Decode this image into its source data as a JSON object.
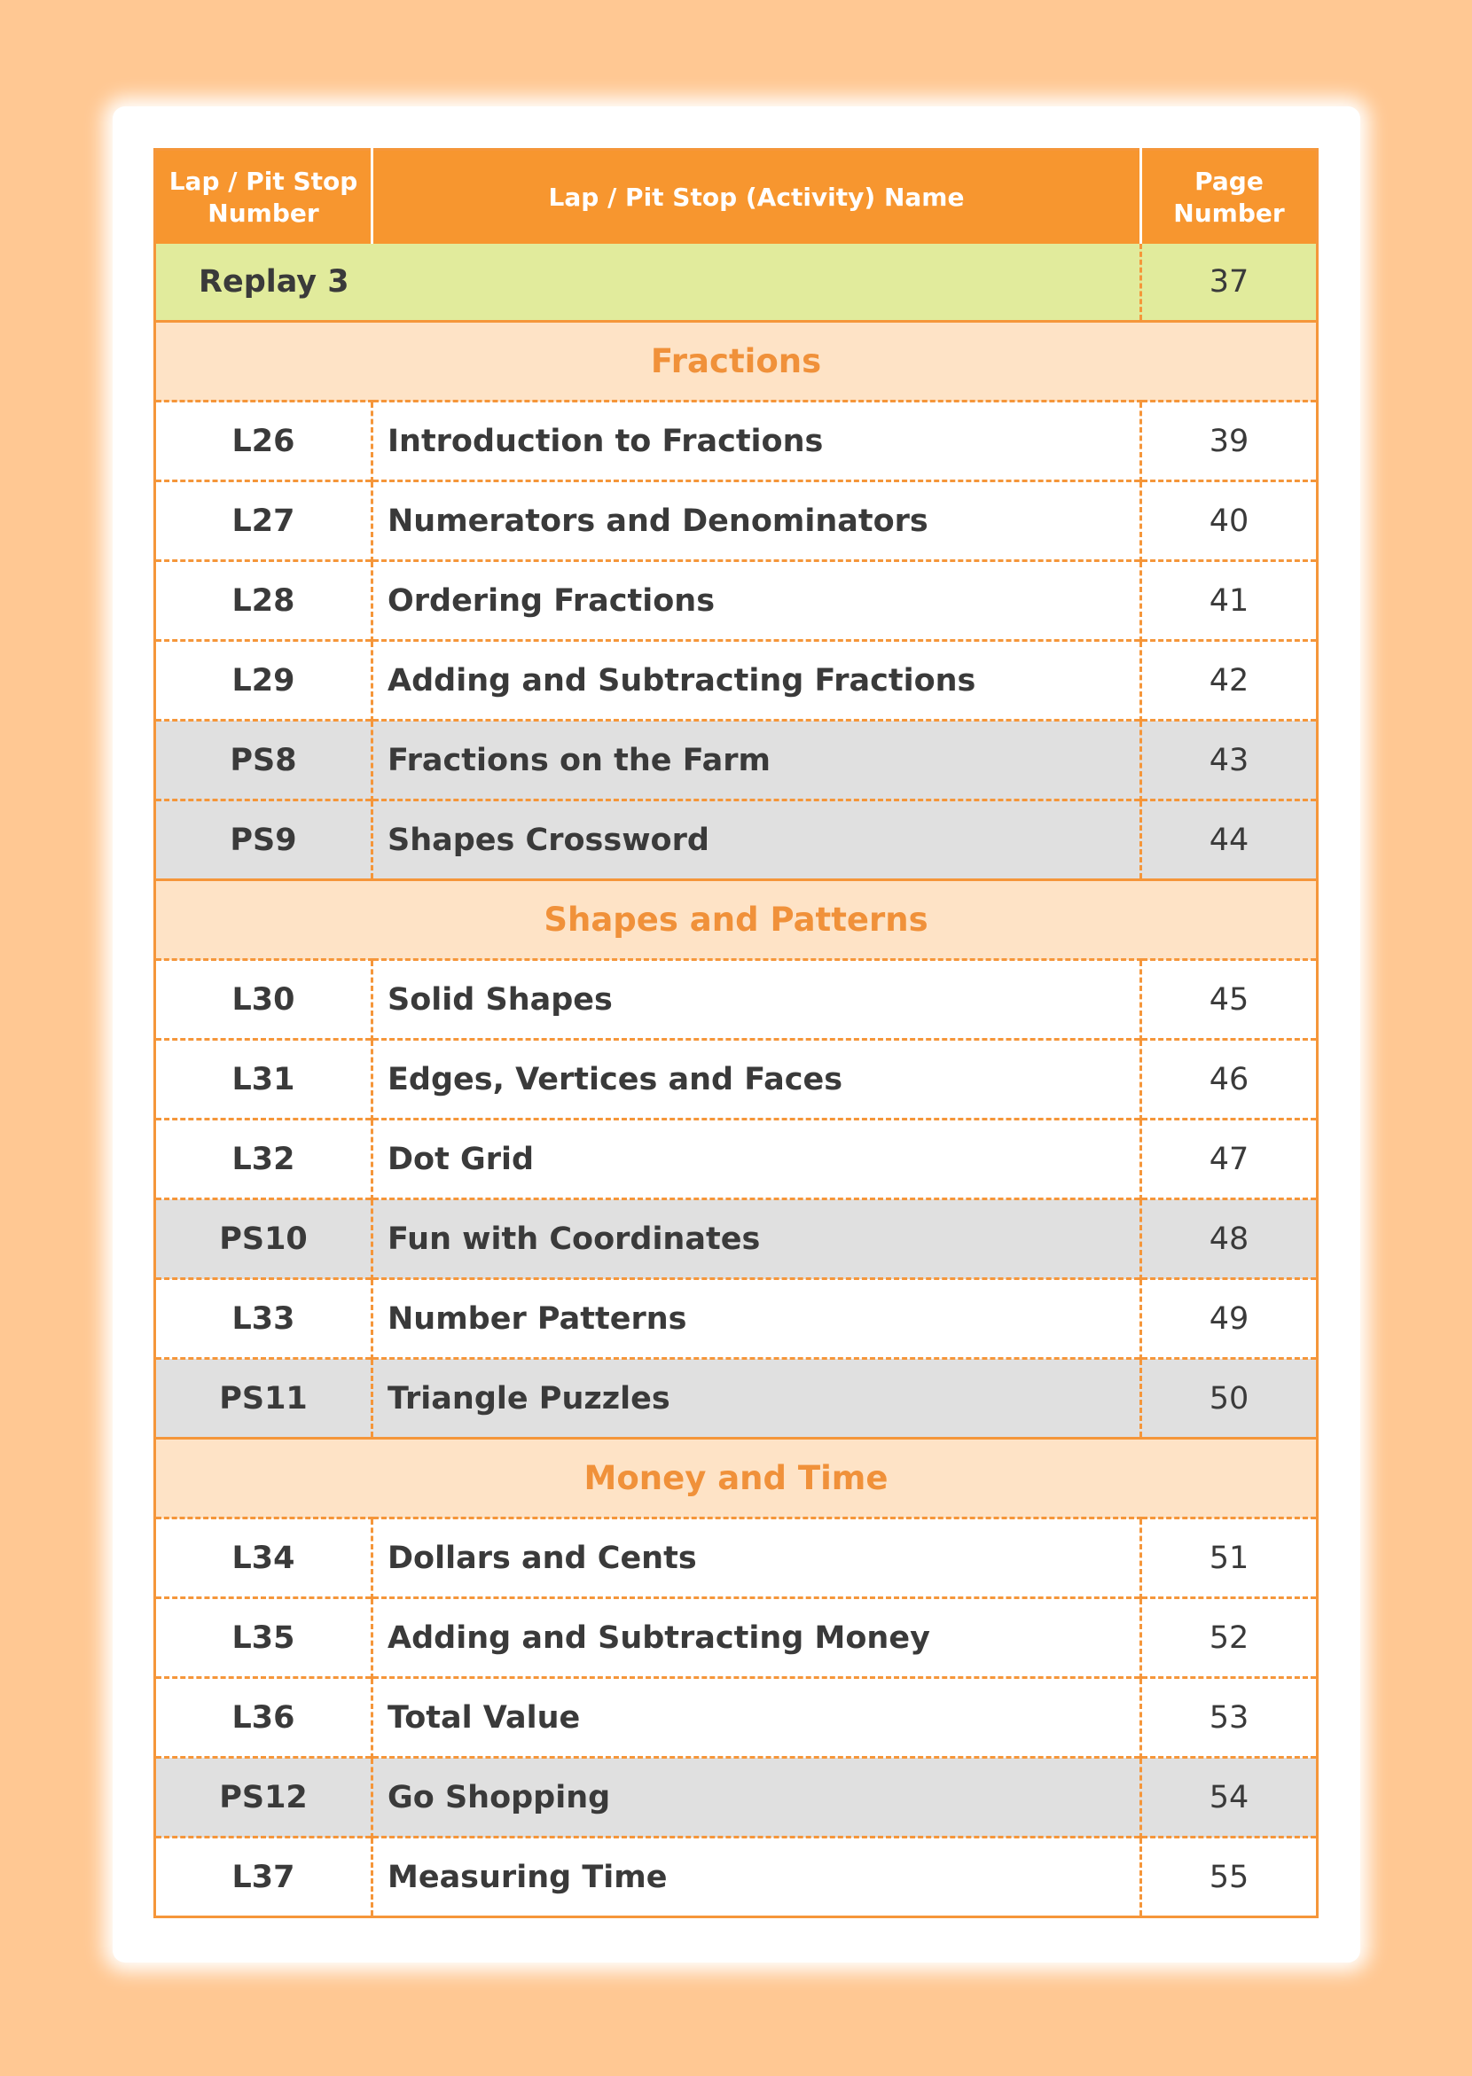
{
  "table": {
    "header": [
      "Lap / Pit Stop Number",
      "Lap / Pit Stop (Activity) Name",
      "Page Number"
    ],
    "replay": {
      "name": "Replay 3",
      "page": 37
    },
    "sections": [
      {
        "title": "Fractions",
        "rows": [
          {
            "number": "L26",
            "name": "Introduction to Fractions",
            "page": 39,
            "shaded": false
          },
          {
            "number": "L27",
            "name": "Numerators and Denominators",
            "page": 40,
            "shaded": false
          },
          {
            "number": "L28",
            "name": "Ordering Fractions",
            "page": 41,
            "shaded": false
          },
          {
            "number": "L29",
            "name": "Adding and Subtracting Fractions",
            "page": 42,
            "shaded": false
          },
          {
            "number": "PS8",
            "name": "Fractions on the Farm",
            "page": 43,
            "shaded": true
          },
          {
            "number": "PS9",
            "name": "Shapes Crossword",
            "page": 44,
            "shaded": true
          }
        ]
      },
      {
        "title": "Shapes and Patterns",
        "rows": [
          {
            "number": "L30",
            "name": "Solid Shapes",
            "page": 45,
            "shaded": false
          },
          {
            "number": "L31",
            "name": "Edges, Vertices and Faces",
            "page": 46,
            "shaded": false
          },
          {
            "number": "L32",
            "name": "Dot Grid",
            "page": 47,
            "shaded": false
          },
          {
            "number": "PS10",
            "name": "Fun with Coordinates",
            "page": 48,
            "shaded": true
          },
          {
            "number": "L33",
            "name": "Number Patterns",
            "page": 49,
            "shaded": false
          },
          {
            "number": "PS11",
            "name": "Triangle Puzzles",
            "page": 50,
            "shaded": true
          }
        ]
      },
      {
        "title": "Money and Time",
        "rows": [
          {
            "number": "L34",
            "name": "Dollars and Cents",
            "page": 51,
            "shaded": false
          },
          {
            "number": "L35",
            "name": "Adding and Subtracting Money",
            "page": 52,
            "shaded": false
          },
          {
            "number": "L36",
            "name": "Total Value",
            "page": 53,
            "shaded": false
          },
          {
            "number": "PS12",
            "name": "Go Shopping",
            "page": 54,
            "shaded": true
          },
          {
            "number": "L37",
            "name": "Measuring Time",
            "page": 55,
            "shaded": false
          }
        ]
      }
    ]
  }
}
